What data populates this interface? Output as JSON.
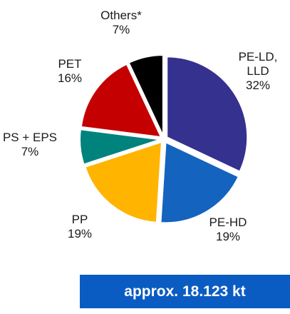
{
  "chart_data": {
    "type": "pie",
    "categories": [
      "PE-LD, LLD",
      "PE-HD",
      "PP",
      "PS + EPS",
      "PET",
      "Others*"
    ],
    "values": [
      32,
      19,
      19,
      7,
      16,
      7
    ],
    "value_labels": [
      "32%",
      "19%",
      "19%",
      "7%",
      "16%",
      "7%"
    ],
    "colors": [
      "#34318f",
      "#1463bf",
      "#ffb400",
      "#00827d",
      "#c40000",
      "#000000"
    ],
    "annotation": "approx. 18.123 kt"
  }
}
